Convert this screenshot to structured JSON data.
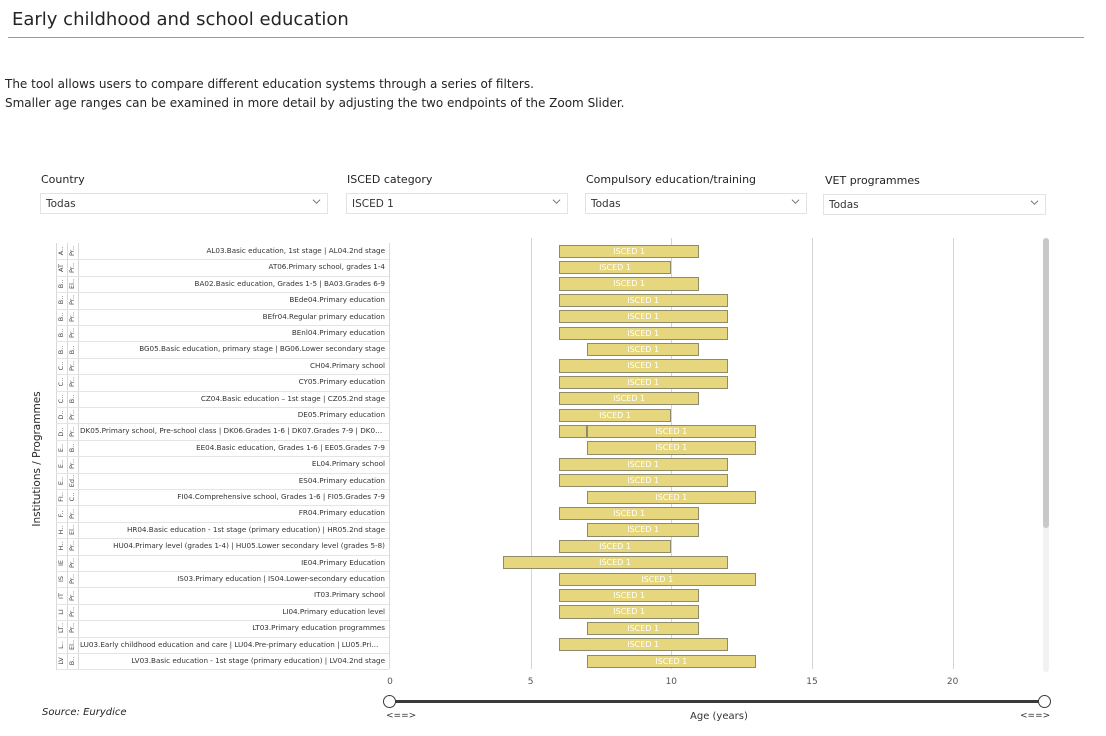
{
  "page": {
    "title": "Early childhood and school education",
    "description_lines": [
      "The tool allows users to compare different education systems through a series of filters.",
      "Smaller age ranges can be examined in more detail by adjusting the two endpoints of the Zoom Slider."
    ],
    "source": "Source: Eurydice"
  },
  "filters": [
    {
      "label": "Country",
      "value": "Todas"
    },
    {
      "label": "ISCED category",
      "value": "ISCED 1"
    },
    {
      "label": "Compulsory education/training",
      "value": "Todas"
    },
    {
      "label": "VET programmes",
      "value": "Todas"
    }
  ],
  "slider": {
    "left_label": "<==>",
    "right_label": "<==>"
  },
  "icons": {
    "dropdown": "chevron-down-icon",
    "slider_handle": "slider-handle"
  },
  "colors": {
    "bar_fill": "#e6d77e",
    "bar_border": "#8f8a6a",
    "bar_text": "#ffffff",
    "slider_track": "#3a3a3a"
  },
  "chart_data": {
    "type": "bar",
    "orientation": "horizontal-range",
    "ylabel": "Institutions / Programmes",
    "xlabel": "Age (years)",
    "xlim": [
      0,
      23
    ],
    "xticks": [
      0,
      5,
      10,
      15,
      20
    ],
    "grid": true,
    "rows": [
      {
        "country": "A..",
        "type": "Pr..",
        "label": "AL03.Basic education, 1st stage | AL04.2nd stage",
        "segments": [
          {
            "start": 6,
            "end": 11,
            "text": "ISCED 1"
          }
        ]
      },
      {
        "country": "AT",
        "type": "Pr..",
        "label": "AT06.Primary school, grades 1-4",
        "segments": [
          {
            "start": 6,
            "end": 10,
            "text": "ISCED 1"
          }
        ]
      },
      {
        "country": "B..",
        "type": "El..",
        "label": "BA02.Basic education, Grades 1-5 | BA03.Grades 6-9",
        "segments": [
          {
            "start": 6,
            "end": 11,
            "text": "ISCED 1"
          }
        ]
      },
      {
        "country": "B..",
        "type": "Pr..",
        "label": "BEde04.Primary education",
        "segments": [
          {
            "start": 6,
            "end": 12,
            "text": "ISCED 1"
          }
        ]
      },
      {
        "country": "B..",
        "type": "Pr..",
        "label": "BEfr04.Regular primary education",
        "segments": [
          {
            "start": 6,
            "end": 12,
            "text": "ISCED 1"
          }
        ]
      },
      {
        "country": "B..",
        "type": "Pr..",
        "label": "BEnl04.Primary education",
        "segments": [
          {
            "start": 6,
            "end": 12,
            "text": "ISCED 1"
          }
        ]
      },
      {
        "country": "B..",
        "type": "B..",
        "label": "BG05.Basic education, primary stage | BG06.Lower secondary stage",
        "segments": [
          {
            "start": 7,
            "end": 11,
            "text": "ISCED 1"
          }
        ]
      },
      {
        "country": "C..",
        "type": "Pr..",
        "label": "CH04.Primary school",
        "segments": [
          {
            "start": 6,
            "end": 12,
            "text": "ISCED 1"
          }
        ]
      },
      {
        "country": "C..",
        "type": "Pr..",
        "label": "CY05.Primary education",
        "segments": [
          {
            "start": 6,
            "end": 12,
            "text": "ISCED 1"
          }
        ]
      },
      {
        "country": "C..",
        "type": "B..",
        "label": "CZ04.Basic education – 1st stage | CZ05.2nd stage",
        "segments": [
          {
            "start": 6,
            "end": 11,
            "text": "ISCED 1"
          }
        ]
      },
      {
        "country": "D..",
        "type": "Pr..",
        "label": "DE05.Primary education",
        "segments": [
          {
            "start": 6,
            "end": 10,
            "text": "ISCED 1"
          }
        ]
      },
      {
        "country": "D..",
        "type": "Pr..",
        "label": "DK05.Primary school, Pre-school class | DK06.Grades 1-6 | DK07.Grades 7-9 | DK08...",
        "segments": [
          {
            "start": 6,
            "end": 7,
            "text": ""
          },
          {
            "start": 7,
            "end": 13,
            "text": "ISCED 1"
          }
        ]
      },
      {
        "country": "E..",
        "type": "B..",
        "label": "EE04.Basic education, Grades 1-6 | EE05.Grades 7-9",
        "segments": [
          {
            "start": 7,
            "end": 13,
            "text": "ISCED 1"
          }
        ]
      },
      {
        "country": "E..",
        "type": "Pr..",
        "label": "EL04.Primary school",
        "segments": [
          {
            "start": 6,
            "end": 12,
            "text": "ISCED 1"
          }
        ]
      },
      {
        "country": "E..",
        "type": "Ed..",
        "label": "ES04.Primary education",
        "segments": [
          {
            "start": 6,
            "end": 12,
            "text": "ISCED 1"
          }
        ]
      },
      {
        "country": "FI..",
        "type": "C..",
        "label": "FI04.Comprehensive school, Grades 1-6 | FI05.Grades 7-9",
        "segments": [
          {
            "start": 7,
            "end": 13,
            "text": "ISCED 1"
          }
        ]
      },
      {
        "country": "F..",
        "type": "Pr..",
        "label": "FR04.Primary education",
        "segments": [
          {
            "start": 6,
            "end": 11,
            "text": "ISCED 1"
          }
        ]
      },
      {
        "country": "H..",
        "type": "El..",
        "label": "HR04.Basic education - 1st stage (primary education) | HR05.2nd stage",
        "segments": [
          {
            "start": 7,
            "end": 11,
            "text": "ISCED 1"
          }
        ]
      },
      {
        "country": "H..",
        "type": "Pr..",
        "label": "HU04.Primary level (grades 1-4) | HU05.Lower secondary level (grades 5-8)",
        "segments": [
          {
            "start": 6,
            "end": 10,
            "text": "ISCED 1"
          }
        ]
      },
      {
        "country": "IE",
        "type": "Pr..",
        "label": "IE04.Primary Education",
        "segments": [
          {
            "start": 4,
            "end": 12,
            "text": "ISCED 1"
          }
        ]
      },
      {
        "country": "IS",
        "type": "Pr..",
        "label": "IS03.Primary education | IS04.Lower-secondary education",
        "segments": [
          {
            "start": 6,
            "end": 13,
            "text": "ISCED 1"
          }
        ]
      },
      {
        "country": "IT",
        "type": "Pr..",
        "label": "IT03.Primary school",
        "segments": [
          {
            "start": 6,
            "end": 11,
            "text": "ISCED 1"
          }
        ]
      },
      {
        "country": "LI",
        "type": "Pr..",
        "label": "LI04.Primary education level",
        "segments": [
          {
            "start": 6,
            "end": 11,
            "text": "ISCED 1"
          }
        ]
      },
      {
        "country": "LT..",
        "type": "Pr..",
        "label": "LT03.Primary education programmes",
        "segments": [
          {
            "start": 7,
            "end": 11,
            "text": "ISCED 1"
          }
        ]
      },
      {
        "country": "L..",
        "type": "El..",
        "label": "LU03.Early childhood education and care | LU04.Pre-primary education | LU05.Primar...",
        "segments": [
          {
            "start": 6,
            "end": 12,
            "text": "ISCED 1"
          }
        ]
      },
      {
        "country": "LV",
        "type": "B..",
        "label": "LV03.Basic education - 1st stage (primary education) | LV04.2nd stage",
        "segments": [
          {
            "start": 7,
            "end": 13,
            "text": "ISCED 1"
          }
        ]
      }
    ]
  }
}
